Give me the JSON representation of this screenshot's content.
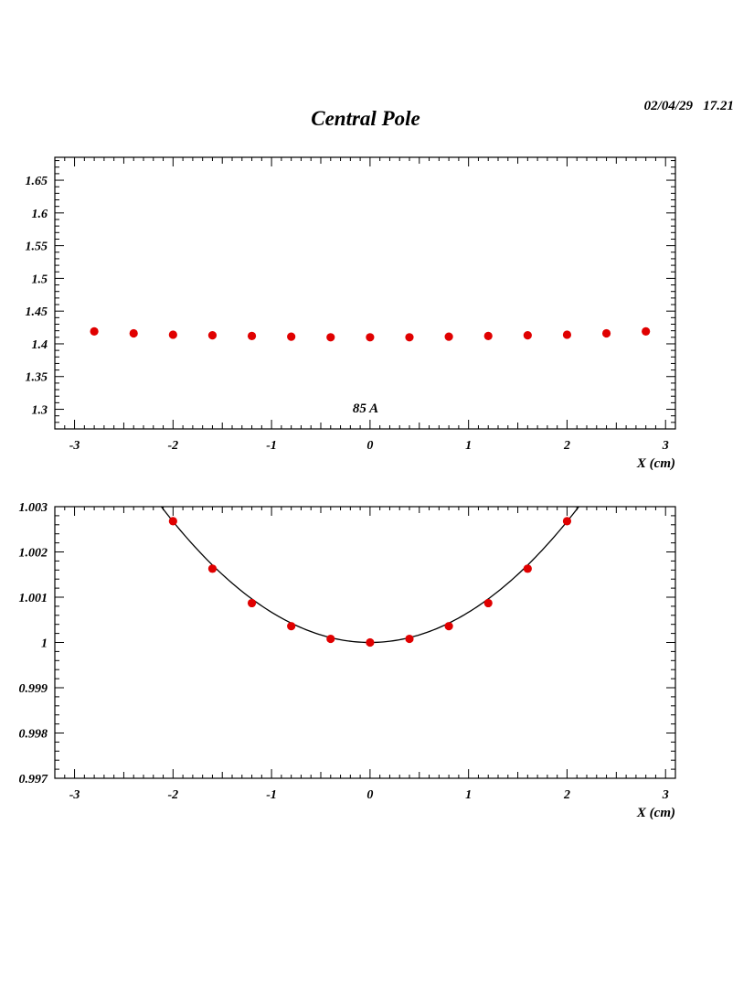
{
  "header": {
    "title": "Central Pole",
    "timestamp": "02/04/29   17.21"
  },
  "colors": {
    "marker": "#e00000",
    "fit_line": "#000000",
    "axis": "#000000"
  },
  "chart_data": [
    {
      "type": "scatter",
      "xlabel": "X (cm)",
      "ylabel": "",
      "annotation": "85 A",
      "xlim": [
        -3.2,
        3.1
      ],
      "ylim": [
        1.27,
        1.685
      ],
      "x_ticks": [
        -3,
        -2,
        -1,
        0,
        1,
        2,
        3
      ],
      "x_tick_labels": [
        "-3",
        "-2",
        "-1",
        "0",
        "1",
        "2",
        "3"
      ],
      "y_ticks": [
        1.3,
        1.35,
        1.4,
        1.45,
        1.5,
        1.55,
        1.6,
        1.65
      ],
      "y_tick_labels": [
        "1.3",
        "1.35",
        "1.4",
        "1.45",
        "1.5",
        "1.55",
        "1.6",
        "1.65"
      ],
      "series": [
        {
          "x": [
            -2.8,
            -2.4,
            -2.0,
            -1.6,
            -1.2,
            -0.8,
            -0.4,
            0.0,
            0.4,
            0.8,
            1.2,
            1.6,
            2.0,
            2.4,
            2.8
          ],
          "y": [
            1.419,
            1.416,
            1.414,
            1.413,
            1.412,
            1.411,
            1.41,
            1.41,
            1.41,
            1.411,
            1.412,
            1.413,
            1.414,
            1.416,
            1.419
          ]
        }
      ]
    },
    {
      "type": "scatter",
      "xlabel": "X (cm)",
      "ylabel": "",
      "xlim": [
        -3.2,
        3.1
      ],
      "ylim": [
        0.997,
        1.003
      ],
      "x_ticks": [
        -3,
        -2,
        -1,
        0,
        1,
        2,
        3
      ],
      "x_tick_labels": [
        "-3",
        "-2",
        "-1",
        "0",
        "1",
        "2",
        "3"
      ],
      "y_ticks": [
        0.997,
        0.998,
        0.999,
        1.0,
        1.001,
        1.002,
        1.003
      ],
      "y_tick_labels": [
        "0.997",
        "0.998",
        "0.999",
        "1",
        "1.001",
        "1.002",
        "1.003"
      ],
      "series": [
        {
          "x": [
            -2.0,
            -1.6,
            -1.2,
            -0.8,
            -0.4,
            0.0,
            0.4,
            0.8,
            1.2,
            1.6,
            2.0
          ],
          "y": [
            1.00268,
            1.00163,
            1.00087,
            1.00036,
            1.00008,
            1.0,
            1.00008,
            1.00036,
            1.00087,
            1.00163,
            1.00268
          ]
        }
      ],
      "fit": {
        "model": "parabola",
        "a": 0.000668,
        "vertex_x": 0.0,
        "vertex_y": 1.0
      }
    }
  ]
}
